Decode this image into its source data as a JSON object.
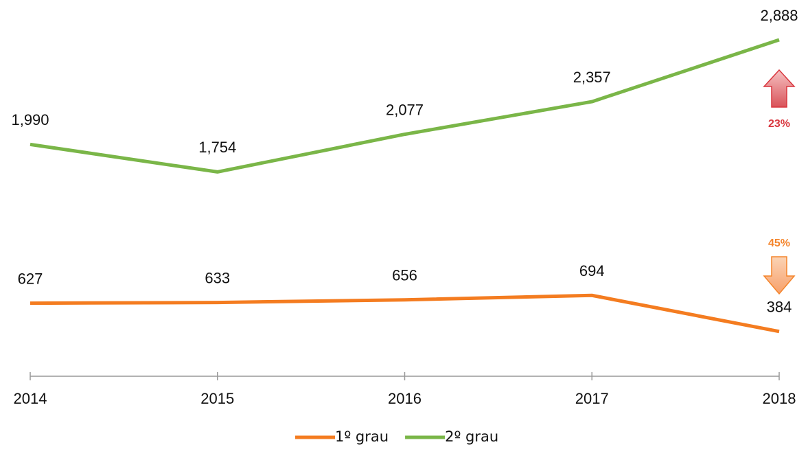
{
  "chart_data": {
    "type": "line",
    "categories": [
      "2014",
      "2015",
      "2016",
      "2017",
      "2018"
    ],
    "series": [
      {
        "name": "1º grau",
        "color": "#f47c20",
        "values": [
          627,
          633,
          656,
          694,
          384
        ],
        "value_labels": [
          "627",
          "633",
          "656",
          "694",
          "384"
        ]
      },
      {
        "name": "2º grau",
        "color": "#7ab648",
        "values": [
          1990,
          1754,
          2077,
          2357,
          2888
        ],
        "value_labels": [
          "1,990",
          "1,754",
          "2,077",
          "2,357",
          "2,888"
        ]
      }
    ],
    "ylim": [
      0,
      3000
    ],
    "annotations": [
      {
        "text": "23%",
        "color": "#d9363e",
        "direction": "up"
      },
      {
        "text": "45%",
        "color": "#f4842a",
        "direction": "down"
      }
    ]
  }
}
